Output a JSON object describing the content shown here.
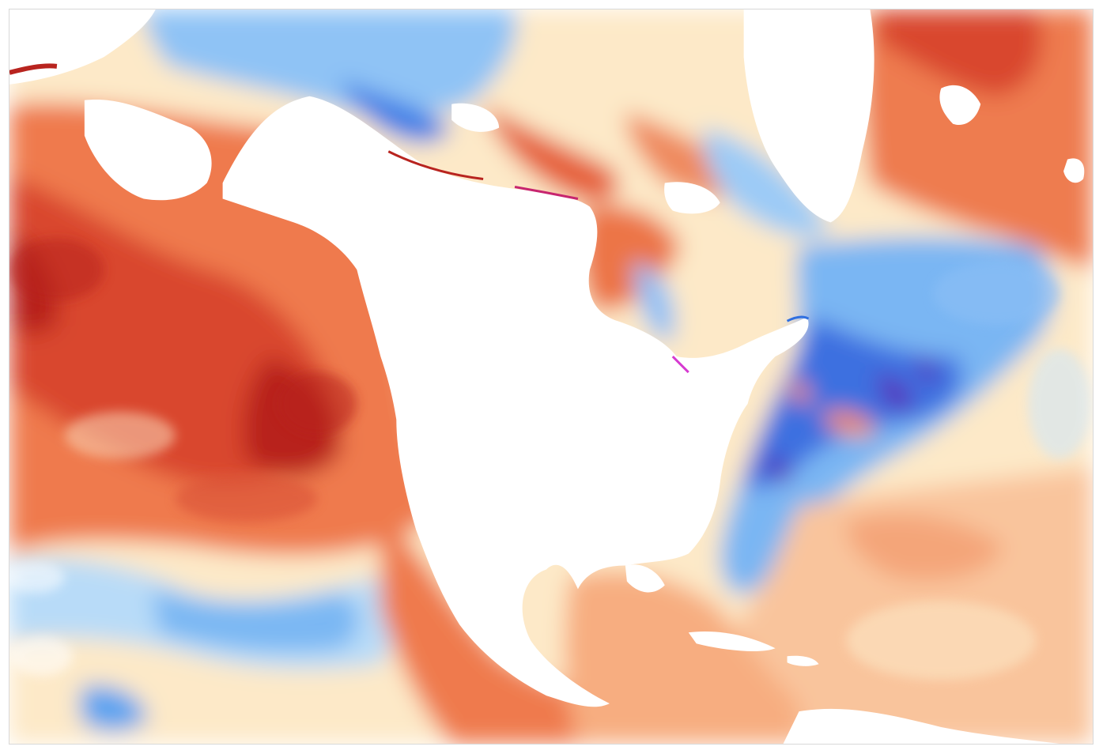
{
  "map": {
    "title": "",
    "subject": "sea-surface-temperature-anomaly",
    "region": "north-pacific-and-north-atlantic",
    "labels": [],
    "color_scale": {
      "strong_warm": "#b2182b",
      "warm": "#e8633f",
      "mild_warm": "#f7b48c",
      "slight_warm": "#fde9c8",
      "neutral": "#ffffff",
      "slight_cool": "#cde6fb",
      "cool": "#6fb2f5",
      "strong_cool": "#2f6fe0",
      "extreme_cool": "#6a2bb8",
      "extreme_warm_edge": "#d63ad0"
    },
    "land_color": "#ffffff",
    "frame_color": "#d8d8d8"
  }
}
